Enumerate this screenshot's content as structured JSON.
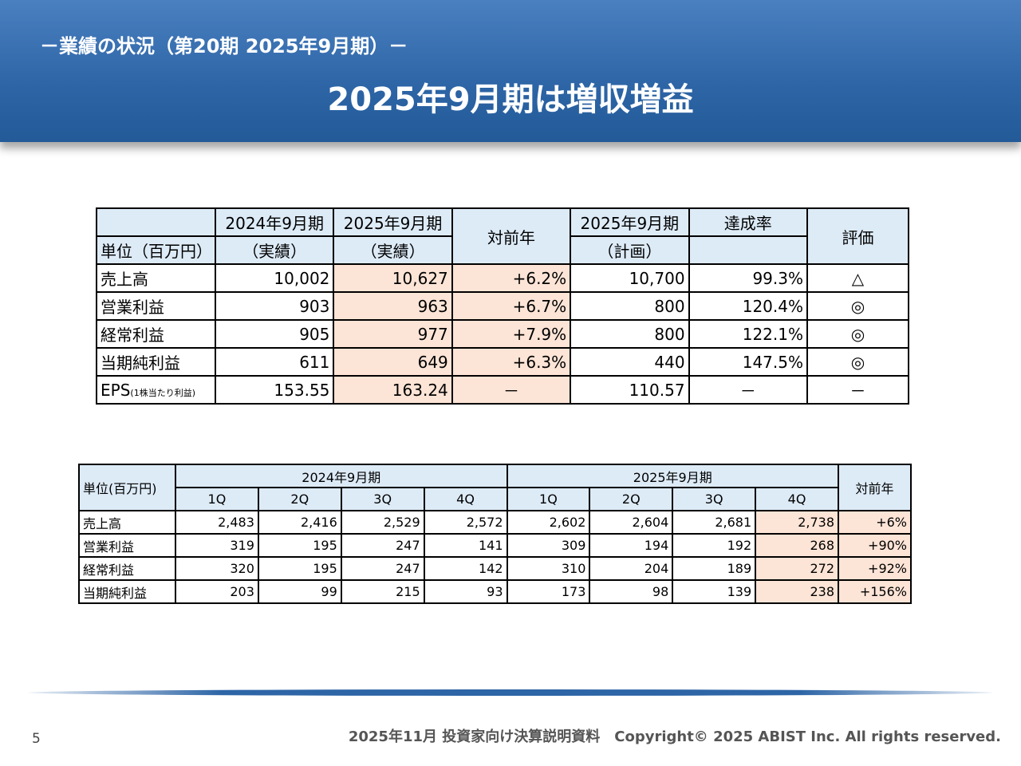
{
  "header": {
    "subtitle": "－業績の状況（第20期 2025年9月期）－",
    "title": "2025年9月期は増収増益"
  },
  "table1": {
    "columns": [
      "2024年9月期",
      "2025年9月期",
      "対前年",
      "2025年9月期",
      "達成率",
      "評価"
    ],
    "unit": "単位（百万円）",
    "subcolumns": [
      "（実績）",
      "（実績）",
      "（計画）"
    ],
    "rows": [
      {
        "label": "売上高",
        "cells": [
          "10,002",
          "10,627",
          "+6.2%",
          "10,700",
          "99.3%",
          "△"
        ]
      },
      {
        "label": "営業利益",
        "cells": [
          "903",
          "963",
          "+6.7%",
          "800",
          "120.4%",
          "◎"
        ]
      },
      {
        "label": "経常利益",
        "cells": [
          "905",
          "977",
          "+7.9%",
          "800",
          "122.1%",
          "◎"
        ]
      },
      {
        "label": "当期純利益",
        "cells": [
          "611",
          "649",
          "+6.3%",
          "440",
          "147.5%",
          "◎"
        ]
      },
      {
        "label": "EPS",
        "note": "(1株当たり利益)",
        "cells": [
          "153.55",
          "163.24",
          "－",
          "110.57",
          "－",
          "－"
        ]
      }
    ]
  },
  "table2": {
    "unit": "単位(百万円)",
    "periods": [
      "2024年9月期",
      "2025年9月期"
    ],
    "yoy": "対前年",
    "quarters": [
      "1Q",
      "2Q",
      "3Q",
      "4Q",
      "1Q",
      "2Q",
      "3Q",
      "4Q"
    ],
    "rows": [
      {
        "label": "売上高",
        "cells": [
          "2,483",
          "2,416",
          "2,529",
          "2,572",
          "2,602",
          "2,604",
          "2,681",
          "2,738",
          "+6%"
        ]
      },
      {
        "label": "営業利益",
        "cells": [
          "319",
          "195",
          "247",
          "141",
          "309",
          "194",
          "192",
          "268",
          "+90%"
        ]
      },
      {
        "label": "経常利益",
        "cells": [
          "320",
          "195",
          "247",
          "142",
          "310",
          "204",
          "189",
          "272",
          "+92%"
        ]
      },
      {
        "label": "当期純利益",
        "cells": [
          "203",
          "99",
          "215",
          "93",
          "173",
          "98",
          "139",
          "238",
          "+156%"
        ]
      }
    ]
  },
  "footer": {
    "page": "5",
    "text": "2025年11月 投資家向け決算説明資料　Copyright© 2025 ABIST Inc. All rights reserved."
  }
}
